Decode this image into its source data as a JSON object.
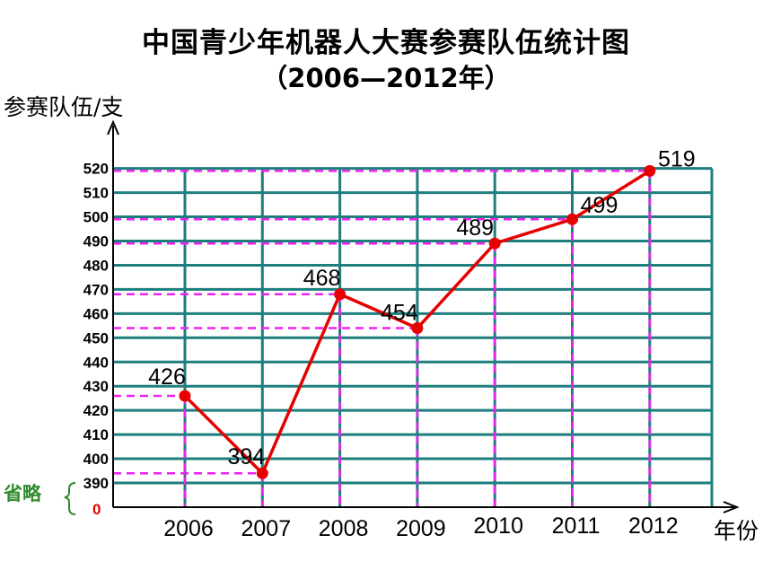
{
  "chart_data": {
    "type": "line",
    "title": "中国青少年机器人大赛参赛队伍统计图",
    "subtitle": "（2006—2012年）",
    "ylabel": "参赛队伍/支",
    "xlabel": "年份",
    "categories": [
      "2006",
      "2007",
      "2008",
      "2009",
      "2010",
      "2011",
      "2012"
    ],
    "values": [
      426,
      394,
      468,
      454,
      489,
      499,
      519
    ],
    "y_ticks": [
      390,
      400,
      410,
      420,
      430,
      440,
      450,
      460,
      470,
      480,
      490,
      500,
      510,
      520
    ],
    "ylim": [
      390,
      520
    ],
    "axis_break_label": "省略",
    "axis_zero_label": "0",
    "grid": true,
    "colors": {
      "line": "#e60000",
      "grid": "#1e7e7e",
      "guide": "#ee22ee",
      "break_brace": "#2e8b2e",
      "zero": "#e00000"
    }
  }
}
